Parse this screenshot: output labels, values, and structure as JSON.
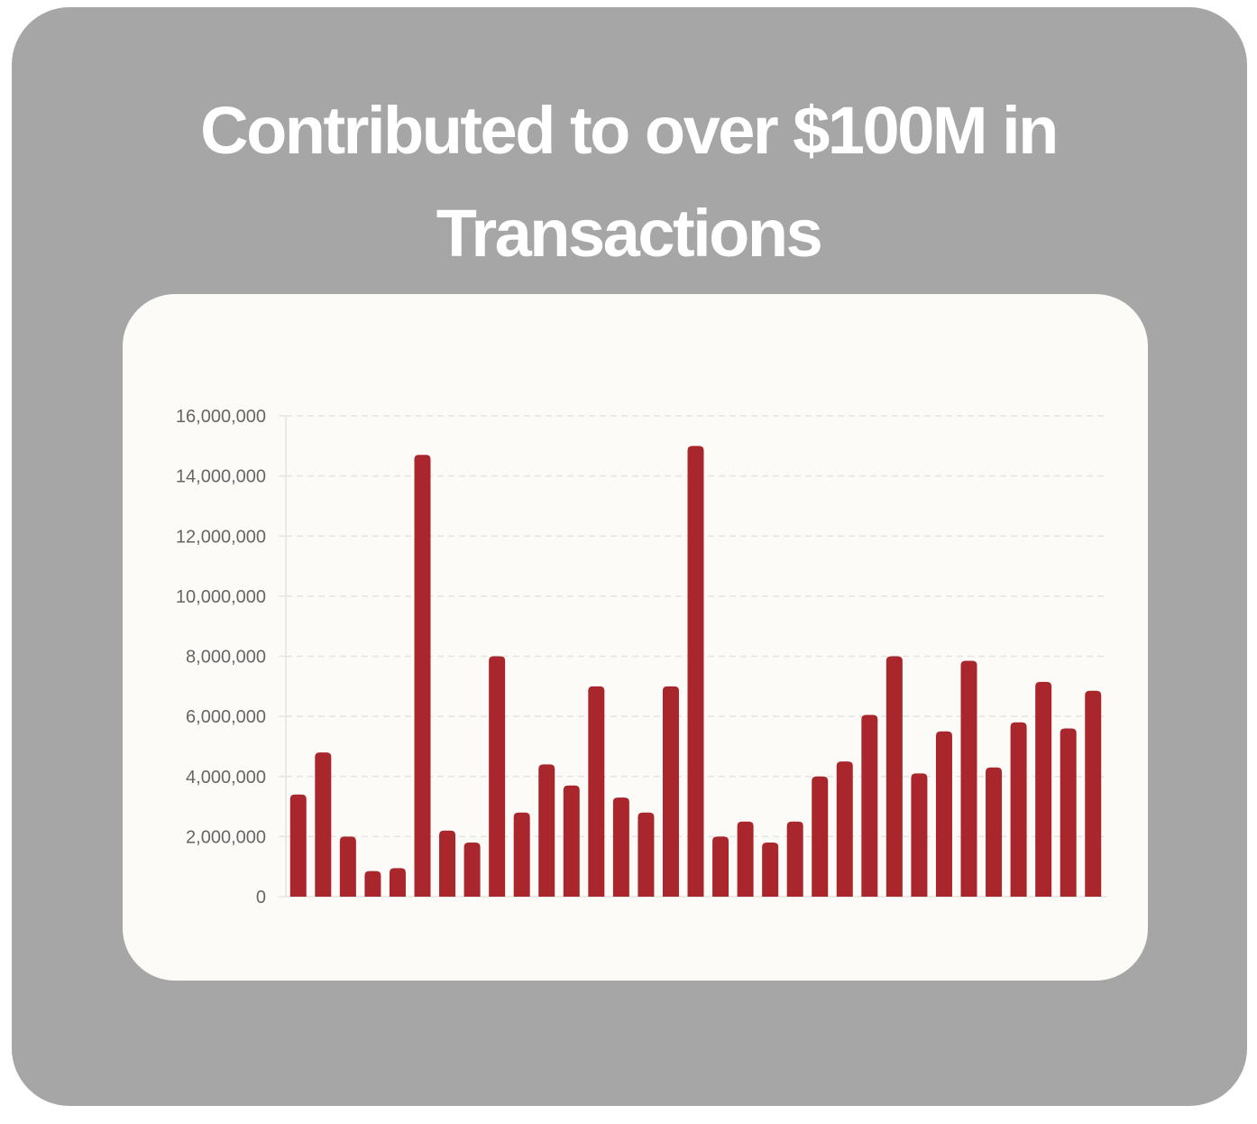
{
  "title_line1": "Contributed to over $100M in",
  "title_line2": "Transactions",
  "colors": {
    "background": "#a6a6a6",
    "panel": "#fcfbf8",
    "bar": "#a9272c",
    "title": "#ffffff",
    "grid": "#e4e4e4",
    "tick_text": "#666666"
  },
  "chart_data": {
    "type": "bar",
    "title": "Contributed to over $100M in Transactions",
    "xlabel": "",
    "ylabel": "",
    "ylim": [
      0,
      16000000
    ],
    "grid": true,
    "yticks": [
      0,
      2000000,
      4000000,
      6000000,
      8000000,
      10000000,
      12000000,
      14000000,
      16000000
    ],
    "ytick_labels": [
      "0",
      "2,000,000",
      "4,000,000",
      "6,000,000",
      "8,000,000",
      "10,000,000",
      "12,000,000",
      "14,000,000",
      "16,000,000"
    ],
    "values": [
      3400000,
      4800000,
      2000000,
      850000,
      950000,
      14700000,
      2200000,
      1800000,
      8000000,
      2800000,
      4400000,
      3700000,
      7000000,
      3300000,
      2800000,
      7000000,
      15000000,
      2000000,
      2500000,
      1800000,
      2500000,
      4000000,
      4500000,
      6050000,
      8000000,
      4100000,
      5500000,
      7850000,
      4300000,
      5800000,
      7150000,
      5600000,
      6850000
    ]
  }
}
